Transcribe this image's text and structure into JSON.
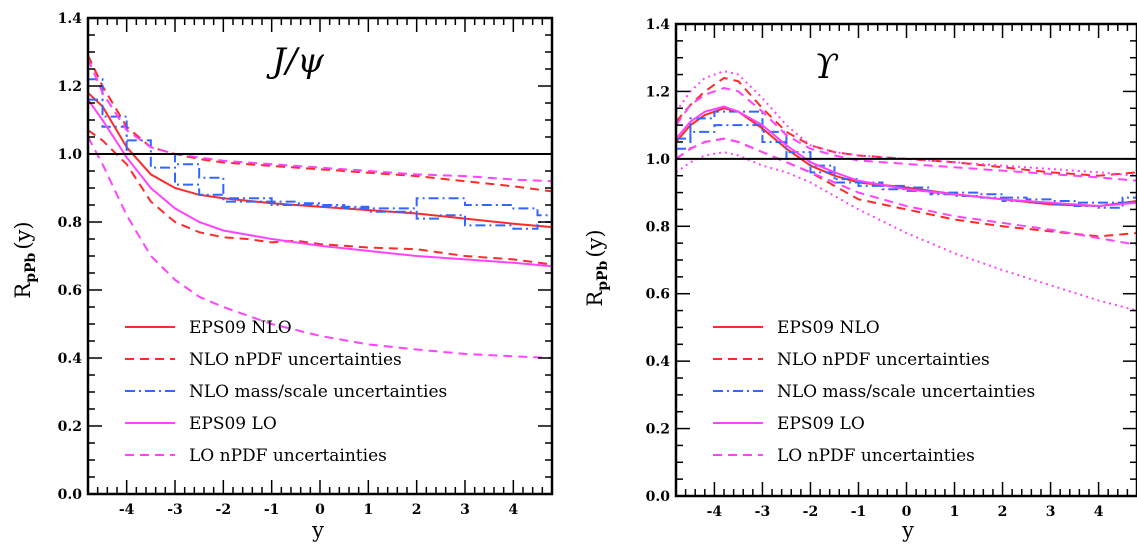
{
  "chart_data": [
    {
      "type": "line",
      "title": "J/ψ",
      "xlabel": "y",
      "ylabel_main": "R",
      "ylabel_sub": "pPb",
      "ylabel_tail": "(y)",
      "xlim": [
        -4.8,
        4.8
      ],
      "ylim": [
        0.0,
        1.4
      ],
      "x_ticks": [
        "-4",
        "-3",
        "-2",
        "-1",
        "0",
        "1",
        "2",
        "3",
        "4"
      ],
      "y_ticks": [
        "0.0",
        "0.2",
        "0.4",
        "0.6",
        "0.8",
        "1.0",
        "1.2",
        "1.4"
      ],
      "reference_line": 1.0,
      "legend": {
        "position": "bottom-left",
        "entries": [
          {
            "label": "EPS09 NLO",
            "color": "#ff2a2a",
            "style": "solid"
          },
          {
            "label": "NLO nPDF uncertainties",
            "color": "#ff2a2a",
            "style": "dashed"
          },
          {
            "label": "NLO mass/scale uncertainties",
            "color": "#3366ff",
            "style": "dashdot"
          },
          {
            "label": "EPS09 LO",
            "color": "#ff44ff",
            "style": "solid"
          },
          {
            "label": "LO nPDF uncertainties",
            "color": "#ff44ff",
            "style": "dashed"
          }
        ]
      },
      "series": [
        {
          "key": "eps09_nlo",
          "color": "#ff2a2a",
          "style": "solid",
          "x": [
            -4.8,
            -4.5,
            -4.0,
            -3.5,
            -3.0,
            -2.5,
            -2.0,
            -1.0,
            0.0,
            1.0,
            2.0,
            3.0,
            4.0,
            4.8
          ],
          "y": [
            1.18,
            1.14,
            1.02,
            0.94,
            0.9,
            0.88,
            0.87,
            0.855,
            0.845,
            0.835,
            0.825,
            0.81,
            0.795,
            0.785
          ]
        },
        {
          "key": "nlo_npdf_upper",
          "color": "#ff2a2a",
          "style": "dashed",
          "x": [
            -4.8,
            -4.5,
            -4.0,
            -3.5,
            -3.0,
            -2.5,
            -2.0,
            -1.0,
            0.0,
            1.0,
            2.0,
            3.0,
            4.0,
            4.8
          ],
          "y": [
            1.29,
            1.2,
            1.08,
            1.02,
            1.0,
            0.985,
            0.975,
            0.965,
            0.955,
            0.945,
            0.935,
            0.92,
            0.905,
            0.89
          ]
        },
        {
          "key": "nlo_npdf_lower",
          "color": "#ff2a2a",
          "style": "dashed",
          "x": [
            -4.8,
            -4.5,
            -4.0,
            -3.5,
            -3.0,
            -2.5,
            -2.0,
            -1.5,
            -1.0,
            -0.5,
            0.0,
            1.0,
            2.0,
            3.0,
            4.0,
            4.8
          ],
          "y": [
            1.07,
            1.04,
            0.97,
            0.86,
            0.8,
            0.77,
            0.755,
            0.75,
            0.74,
            0.745,
            0.735,
            0.725,
            0.72,
            0.7,
            0.69,
            0.675
          ]
        },
        {
          "key": "nlo_scale_upper",
          "color": "#3366ff",
          "style": "dashdot",
          "step": true,
          "x": [
            -4.8,
            -4.5,
            -4.0,
            -3.5,
            -3.0,
            -2.5,
            -2.0,
            -1.5,
            -1.0,
            -0.5,
            0.0,
            0.5,
            1.0,
            1.5,
            2.0,
            2.5,
            3.0,
            3.5,
            4.0,
            4.5,
            4.8
          ],
          "y": [
            1.22,
            1.11,
            1.04,
            1.0,
            0.97,
            0.93,
            0.87,
            0.87,
            0.86,
            0.855,
            0.85,
            0.845,
            0.84,
            0.84,
            0.87,
            0.87,
            0.85,
            0.85,
            0.84,
            0.82,
            0.82
          ]
        },
        {
          "key": "nlo_scale_lower",
          "color": "#3366ff",
          "style": "dashdot",
          "step": true,
          "x": [
            -4.8,
            -4.5,
            -4.0,
            -3.5,
            -3.0,
            -2.5,
            -2.0,
            -1.5,
            -1.0,
            -0.5,
            0.0,
            0.5,
            1.0,
            1.5,
            2.0,
            2.5,
            3.0,
            3.5,
            4.0,
            4.5,
            4.8
          ],
          "y": [
            1.16,
            1.08,
            1.0,
            0.96,
            0.91,
            0.88,
            0.86,
            0.86,
            0.85,
            0.85,
            0.845,
            0.84,
            0.83,
            0.83,
            0.81,
            0.82,
            0.79,
            0.79,
            0.78,
            0.8,
            0.8
          ]
        },
        {
          "key": "eps09_lo",
          "color": "#ff44ff",
          "style": "solid",
          "x": [
            -4.8,
            -4.5,
            -4.0,
            -3.5,
            -3.0,
            -2.5,
            -2.0,
            -1.0,
            0.0,
            1.0,
            2.0,
            3.0,
            4.0,
            4.8
          ],
          "y": [
            1.16,
            1.1,
            0.99,
            0.9,
            0.84,
            0.8,
            0.775,
            0.75,
            0.73,
            0.715,
            0.7,
            0.69,
            0.68,
            0.67
          ]
        },
        {
          "key": "lo_npdf_upper",
          "color": "#ff44ff",
          "style": "dashed",
          "x": [
            -4.8,
            -4.5,
            -4.0,
            -3.5,
            -3.0,
            -2.5,
            -2.0,
            -1.0,
            0.0,
            1.0,
            2.0,
            3.0,
            4.0,
            4.8
          ],
          "y": [
            1.28,
            1.18,
            1.07,
            1.02,
            1.0,
            0.99,
            0.98,
            0.97,
            0.96,
            0.95,
            0.94,
            0.935,
            0.925,
            0.92
          ]
        },
        {
          "key": "lo_npdf_lower",
          "color": "#ff44ff",
          "style": "dashed",
          "x": [
            -4.8,
            -4.5,
            -4.0,
            -3.5,
            -3.0,
            -2.5,
            -2.0,
            -1.0,
            0.0,
            1.0,
            2.0,
            3.0,
            4.0,
            4.8
          ],
          "y": [
            1.05,
            0.97,
            0.82,
            0.7,
            0.63,
            0.58,
            0.55,
            0.5,
            0.465,
            0.44,
            0.425,
            0.412,
            0.405,
            0.4
          ]
        }
      ]
    },
    {
      "type": "line",
      "title": "ϒ",
      "xlabel": "y",
      "ylabel_main": "R",
      "ylabel_sub": "pPb",
      "ylabel_tail": "(y)",
      "xlim": [
        -4.8,
        4.8
      ],
      "ylim": [
        0.0,
        1.4
      ],
      "x_ticks": [
        "-4",
        "-3",
        "-2",
        "-1",
        "0",
        "1",
        "2",
        "3",
        "4"
      ],
      "y_ticks": [
        "0.0",
        "0.2",
        "0.4",
        "0.6",
        "0.8",
        "1.0",
        "1.2",
        "1.4"
      ],
      "reference_line": 1.0,
      "legend": {
        "position": "bottom-left",
        "entries": [
          {
            "label": "EPS09 NLO",
            "color": "#ff2a2a",
            "style": "solid"
          },
          {
            "label": "NLO nPDF uncertainties",
            "color": "#ff2a2a",
            "style": "dashed"
          },
          {
            "label": "NLO mass/scale uncertainties",
            "color": "#3366ff",
            "style": "dashdot"
          },
          {
            "label": "EPS09 LO",
            "color": "#ff44ff",
            "style": "solid"
          },
          {
            "label": "LO nPDF uncertainties",
            "color": "#ff44ff",
            "style": "dashed"
          }
        ]
      },
      "series": [
        {
          "key": "eps09_nlo",
          "color": "#ff2a2a",
          "style": "solid",
          "x": [
            -4.8,
            -4.5,
            -4.2,
            -3.8,
            -3.5,
            -3.0,
            -2.5,
            -2.0,
            -1.5,
            -1.0,
            0.0,
            1.0,
            2.0,
            3.0,
            4.0,
            4.8
          ],
          "y": [
            1.05,
            1.1,
            1.13,
            1.15,
            1.14,
            1.09,
            1.03,
            0.98,
            0.95,
            0.93,
            0.915,
            0.895,
            0.88,
            0.865,
            0.86,
            0.875
          ]
        },
        {
          "key": "nlo_npdf_upper",
          "color": "#ff2a2a",
          "style": "dashed",
          "x": [
            -4.8,
            -4.5,
            -4.2,
            -3.8,
            -3.5,
            -3.0,
            -2.5,
            -2.0,
            -1.5,
            -1.0,
            0.0,
            1.0,
            2.0,
            3.0,
            4.0,
            4.8
          ],
          "y": [
            1.11,
            1.16,
            1.2,
            1.24,
            1.23,
            1.15,
            1.08,
            1.04,
            1.02,
            1.01,
            1.0,
            0.99,
            0.975,
            0.96,
            0.95,
            0.96
          ]
        },
        {
          "key": "nlo_npdf_lower",
          "color": "#ff2a2a",
          "style": "dashed",
          "x": [
            -4.8,
            -4.5,
            -4.2,
            -3.8,
            -3.5,
            -3.0,
            -2.5,
            -2.0,
            -1.5,
            -1.0,
            0.0,
            1.0,
            2.0,
            3.0,
            4.0,
            4.8
          ],
          "y": [
            1.0,
            1.03,
            1.05,
            1.06,
            1.05,
            1.02,
            0.99,
            0.96,
            0.92,
            0.88,
            0.85,
            0.82,
            0.8,
            0.785,
            0.77,
            0.78
          ]
        },
        {
          "key": "nlo_scale_upper",
          "color": "#3366ff",
          "style": "dashdot",
          "step": true,
          "x": [
            -4.8,
            -4.5,
            -4.0,
            -3.5,
            -3.0,
            -2.5,
            -2.0,
            -1.5,
            -1.0,
            -0.5,
            0.0,
            0.5,
            1.0,
            1.5,
            2.0,
            2.5,
            3.0,
            3.5,
            4.0,
            4.5,
            4.8
          ],
          "y": [
            1.06,
            1.12,
            1.14,
            1.14,
            1.08,
            1.02,
            0.98,
            0.94,
            0.93,
            0.92,
            0.915,
            0.9,
            0.9,
            0.895,
            0.885,
            0.88,
            0.875,
            0.87,
            0.87,
            0.885,
            0.885
          ]
        },
        {
          "key": "nlo_scale_lower",
          "color": "#3366ff",
          "style": "dashdot",
          "step": true,
          "x": [
            -4.8,
            -4.5,
            -4.0,
            -3.5,
            -3.0,
            -2.5,
            -2.0,
            -1.5,
            -1.0,
            -0.5,
            0.0,
            0.5,
            1.0,
            1.5,
            2.0,
            2.5,
            3.0,
            3.5,
            4.0,
            4.5,
            4.8
          ],
          "y": [
            1.03,
            1.08,
            1.1,
            1.1,
            1.05,
            1.0,
            0.96,
            0.93,
            0.92,
            0.91,
            0.905,
            0.895,
            0.89,
            0.885,
            0.875,
            0.87,
            0.865,
            0.86,
            0.855,
            0.87,
            0.87
          ]
        },
        {
          "key": "eps09_lo",
          "color": "#ff44ff",
          "style": "solid",
          "x": [
            -4.8,
            -4.5,
            -4.2,
            -3.8,
            -3.5,
            -3.0,
            -2.5,
            -2.0,
            -1.5,
            -1.0,
            0.0,
            1.0,
            2.0,
            3.0,
            4.0,
            4.8
          ],
          "y": [
            1.06,
            1.11,
            1.14,
            1.155,
            1.14,
            1.1,
            1.04,
            0.99,
            0.96,
            0.935,
            0.91,
            0.895,
            0.88,
            0.87,
            0.86,
            0.87
          ]
        },
        {
          "key": "lo_npdf_upper",
          "color": "#ff44ff",
          "style": "dashed",
          "x": [
            -4.8,
            -4.5,
            -4.2,
            -3.8,
            -3.5,
            -3.0,
            -2.5,
            -2.0,
            -1.5,
            -1.0,
            0.0,
            1.0,
            2.0,
            3.0,
            4.0,
            4.8
          ],
          "y": [
            1.1,
            1.16,
            1.19,
            1.21,
            1.2,
            1.14,
            1.07,
            1.03,
            1.01,
            0.995,
            0.985,
            0.975,
            0.965,
            0.955,
            0.945,
            0.935
          ]
        },
        {
          "key": "lo_npdf_lower",
          "color": "#ff44ff",
          "style": "dashed",
          "x": [
            -4.8,
            -4.5,
            -4.2,
            -3.8,
            -3.5,
            -3.0,
            -2.5,
            -2.0,
            -1.5,
            -1.0,
            0.0,
            1.0,
            2.0,
            3.0,
            4.0,
            4.8
          ],
          "y": [
            1.0,
            1.03,
            1.05,
            1.06,
            1.05,
            1.02,
            0.99,
            0.96,
            0.93,
            0.9,
            0.86,
            0.83,
            0.81,
            0.79,
            0.765,
            0.745
          ]
        },
        {
          "key": "lo_extra_upper",
          "color": "#ff44ff",
          "style": "dotted",
          "x": [
            -4.8,
            -4.5,
            -4.2,
            -3.8,
            -3.5,
            -3.0,
            -2.5,
            -2.0,
            -1.5,
            -1.0,
            0.0,
            1.0,
            2.0,
            3.0,
            4.0,
            4.8
          ],
          "y": [
            1.14,
            1.2,
            1.24,
            1.26,
            1.25,
            1.18,
            1.1,
            1.04,
            1.02,
            1.01,
            1.0,
            0.99,
            0.98,
            0.97,
            0.96,
            0.95
          ]
        },
        {
          "key": "lo_extra_lower",
          "color": "#ff44ff",
          "style": "dotted",
          "x": [
            -4.8,
            -4.5,
            -4.2,
            -3.8,
            -3.5,
            -3.0,
            -2.5,
            -2.0,
            -1.5,
            -1.0,
            0.0,
            1.0,
            2.0,
            3.0,
            4.0,
            4.8
          ],
          "y": [
            0.96,
            0.99,
            1.01,
            1.02,
            1.01,
            0.98,
            0.96,
            0.93,
            0.89,
            0.85,
            0.78,
            0.72,
            0.67,
            0.625,
            0.58,
            0.55
          ]
        }
      ]
    }
  ]
}
